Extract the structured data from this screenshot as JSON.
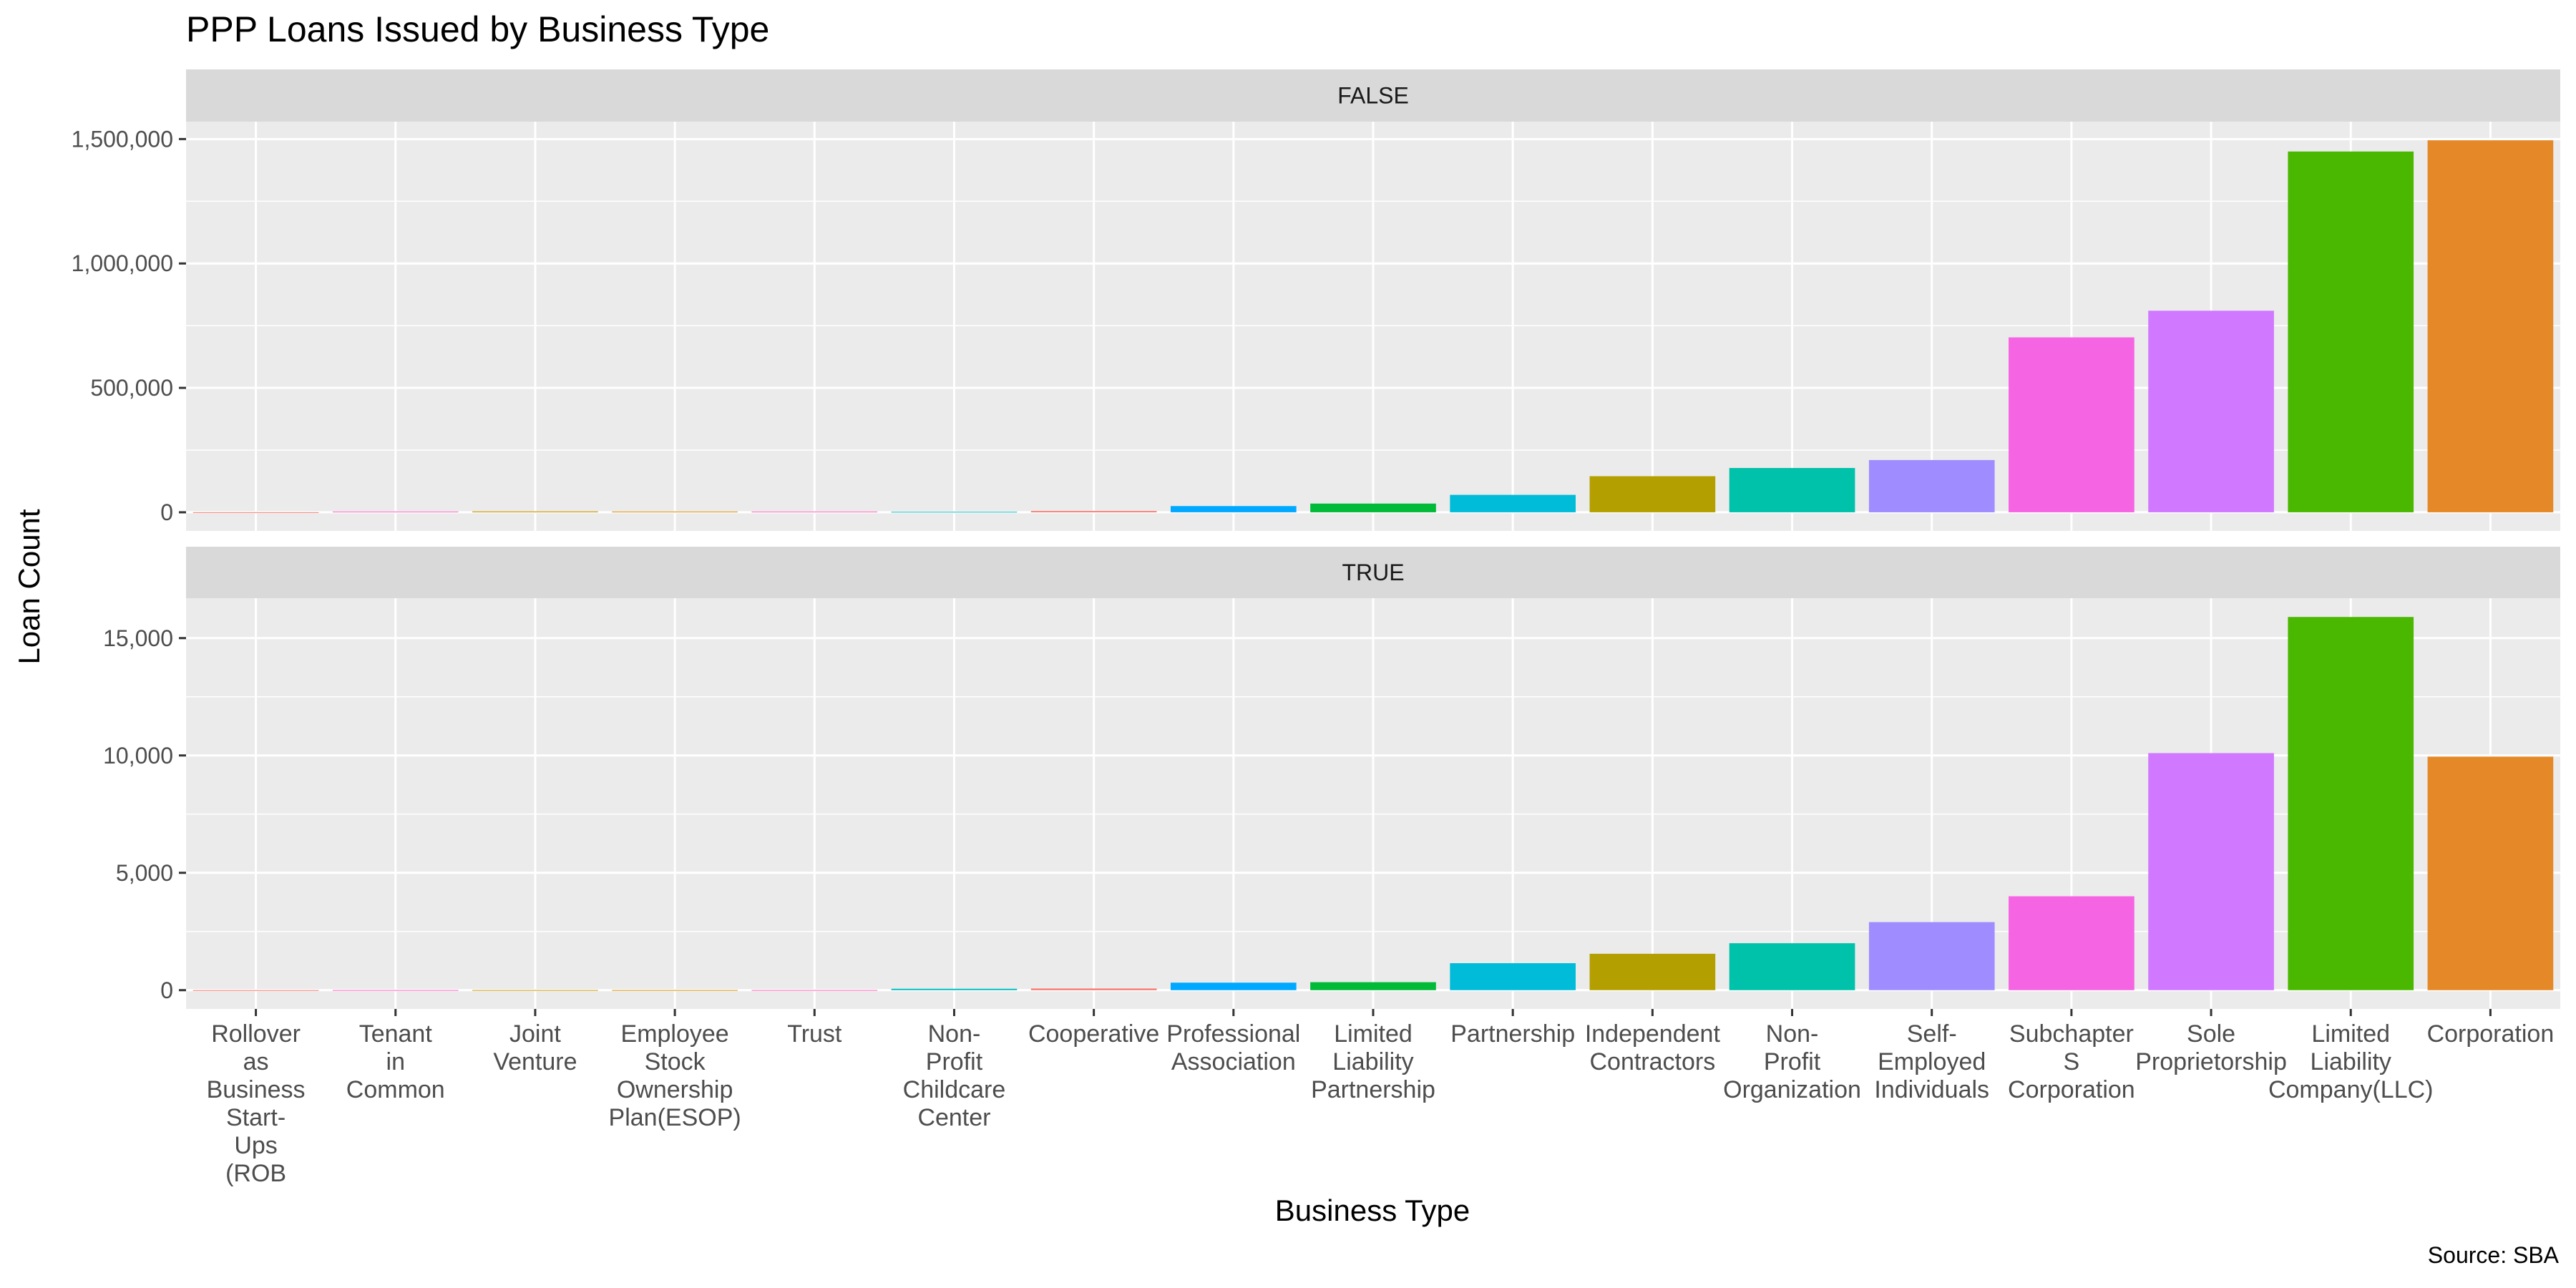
{
  "chart_data": {
    "type": "bar",
    "title": "PPP Loans Issued by Business Type",
    "xlabel": "Business Type",
    "ylabel": "Loan Count",
    "caption": "Source: SBA",
    "categories": [
      "Rollover as Business Start-Ups (ROB",
      "Tenant in Common",
      "Joint Venture",
      "Employee Stock Ownership Plan(ESOP)",
      "Trust",
      "Non-Profit Childcare Center",
      "Cooperative",
      "Professional Association",
      "Limited Liability Partnership",
      "Partnership",
      "Independent Contractors",
      "Non-Profit Organization",
      "Self-Employed Individuals",
      "Subchapter S Corporation",
      "Sole Proprietorship",
      "Limited Liability Company(LLC)",
      "Corporation"
    ],
    "category_tick_lines": [
      [
        "Rollover",
        "as",
        "Business",
        "Start-",
        "Ups",
        "(ROB"
      ],
      [
        "Tenant",
        "in",
        "Common"
      ],
      [
        "Joint",
        "Venture"
      ],
      [
        "Employee",
        "Stock",
        "Ownership",
        "Plan(ESOP)"
      ],
      [
        "Trust"
      ],
      [
        "Non-",
        "Profit",
        "Childcare",
        "Center"
      ],
      [
        "Cooperative"
      ],
      [
        "Professional",
        "Association"
      ],
      [
        "Limited",
        "Liability",
        "Partnership"
      ],
      [
        "Partnership"
      ],
      [
        "Independent",
        "Contractors"
      ],
      [
        "Non-",
        "Profit",
        "Organization"
      ],
      [
        "Self-",
        "Employed",
        "Individuals"
      ],
      [
        "Subchapter",
        "S",
        "Corporation"
      ],
      [
        "Sole",
        "Proprietorship"
      ],
      [
        "Limited",
        "Liability",
        "Company(LLC)"
      ],
      [
        "Corporation"
      ]
    ],
    "colors": [
      "#F8766D",
      "#FF61C3",
      "#C99800",
      "#D89000",
      "#FF62BC",
      "#00BFC4",
      "#F8766D",
      "#00A9FF",
      "#00BA38",
      "#00BCD8",
      "#B3A000",
      "#00C1A9",
      "#9F8CFF",
      "#F564E3",
      "#D078FF",
      "#4AB800",
      "#E58828"
    ],
    "panels": [
      {
        "strip": "FALSE",
        "values": [
          300,
          3000,
          3500,
          3000,
          3000,
          2000,
          5000,
          25000,
          35000,
          70000,
          145000,
          178000,
          210000,
          703000,
          810000,
          1450000,
          1495000
        ],
        "ylim": [
          -75000,
          1570000
        ],
        "yticks": [
          0,
          500000,
          1000000,
          1500000
        ],
        "ytick_labels": [
          "0",
          "500,000",
          "1,000,000",
          "1,500,000"
        ]
      },
      {
        "strip": "TRUE",
        "values": [
          2,
          5,
          5,
          5,
          5,
          60,
          70,
          320,
          340,
          1150,
          1550,
          2000,
          2900,
          4000,
          10100,
          15900,
          9950
        ],
        "ylim": [
          -800,
          16700
        ],
        "yticks": [
          0,
          5000,
          10000,
          15000
        ],
        "ytick_labels": [
          "0",
          "5,000",
          "10,000",
          "15,000"
        ]
      }
    ],
    "grid": true,
    "legend": "none"
  }
}
